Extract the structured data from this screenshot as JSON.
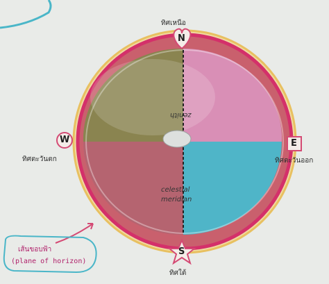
{
  "compass": {
    "north": {
      "letter": "N",
      "thai": "ทิศเหนือ"
    },
    "south": {
      "letter": "S",
      "thai": "ทิศใต้"
    },
    "east": {
      "letter": "E",
      "thai": "ทิศตะวันออก"
    },
    "west": {
      "letter": "W",
      "thai": "ทิศตะวันตก"
    }
  },
  "dome": {
    "zenith_label": "zenith",
    "celestial_label": "celestial",
    "meridian_label": "meridian"
  },
  "horizon_note": {
    "thai": "เส้นขอบฟ้า",
    "english": "(plane of horizon)"
  },
  "colors": {
    "background": "#e9ebe8",
    "rim": "#d4306a",
    "rim_outer": "#e8c060",
    "quadrant_nw": "#8a8450",
    "quadrant_ne": "#d98fb6",
    "quadrant_sw": "#b56470",
    "quadrant_se": "#4fb5c8",
    "meridian_line": "#222222",
    "label_outline": "#d44a74",
    "cyan_scribble": "#4ab6c8"
  }
}
